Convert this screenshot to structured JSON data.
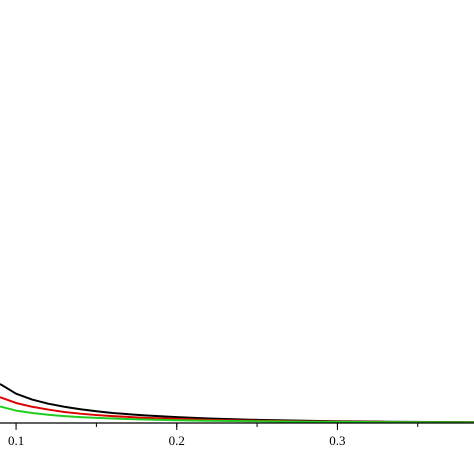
{
  "chart_data": {
    "type": "line",
    "title": "",
    "xlabel": "",
    "ylabel": "",
    "xlim": [
      0.09,
      0.385
    ],
    "ylim": [
      0,
      1
    ],
    "grid": false,
    "legend": "none",
    "x_ticks": [
      {
        "value": 0.1,
        "label": "0.1"
      },
      {
        "value": 0.2,
        "label": "0.2"
      },
      {
        "value": 0.3,
        "label": "0.3"
      }
    ],
    "x_minor_step": 0.05,
    "series": [
      {
        "color": "#000000",
        "x": [
          0.09,
          0.1,
          0.11,
          0.12,
          0.13,
          0.14,
          0.15,
          0.16,
          0.18,
          0.2,
          0.22,
          0.25,
          0.28,
          0.3,
          0.33,
          0.36,
          0.385
        ],
        "y": [
          0.113,
          0.085,
          0.068,
          0.056,
          0.047,
          0.04,
          0.034,
          0.029,
          0.022,
          0.017,
          0.013,
          0.009,
          0.0065,
          0.0052,
          0.0038,
          0.0028,
          0.0022
        ]
      },
      {
        "color": "#dd0000",
        "x": [
          0.09,
          0.1,
          0.11,
          0.12,
          0.13,
          0.14,
          0.15,
          0.16,
          0.18,
          0.2,
          0.22,
          0.25,
          0.28,
          0.3,
          0.33,
          0.36,
          0.385
        ],
        "y": [
          0.075,
          0.058,
          0.047,
          0.039,
          0.032,
          0.027,
          0.023,
          0.02,
          0.015,
          0.012,
          0.009,
          0.0065,
          0.0048,
          0.0039,
          0.003,
          0.0024,
          0.002
        ]
      },
      {
        "color": "#22cc22",
        "x": [
          0.09,
          0.1,
          0.11,
          0.12,
          0.13,
          0.14,
          0.15,
          0.16,
          0.18,
          0.2,
          0.22,
          0.25,
          0.28,
          0.3,
          0.33,
          0.36,
          0.385
        ],
        "y": [
          0.048,
          0.036,
          0.029,
          0.024,
          0.02,
          0.017,
          0.015,
          0.013,
          0.01,
          0.008,
          0.0065,
          0.005,
          0.0038,
          0.0032,
          0.0026,
          0.0021,
          0.0018
        ]
      }
    ]
  }
}
